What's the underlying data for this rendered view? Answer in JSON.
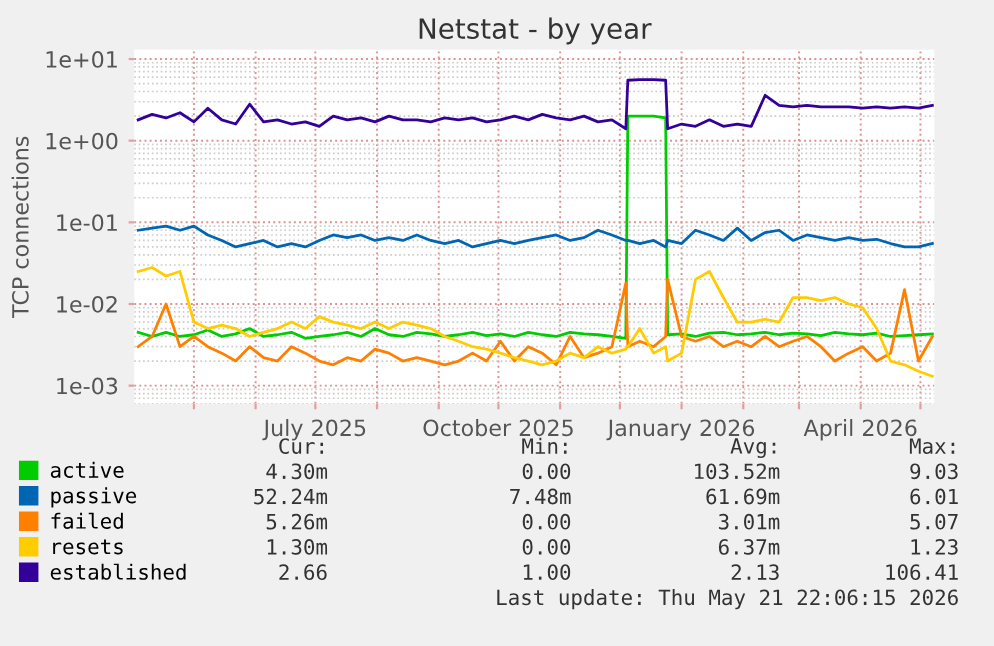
{
  "chart_data": {
    "type": "line",
    "title": "Netstat - by year",
    "ylabel": "TCP connections",
    "log": "y",
    "grid": true,
    "legend": "bottom left",
    "marker": "none",
    "line_style": "solid",
    "ylim": [
      0.0006,
      13
    ],
    "yticks": [
      {
        "value": 0.001,
        "label": "1e-03"
      },
      {
        "value": 0.01,
        "label": "1e-02"
      },
      {
        "value": 0.1,
        "label": "1e-01"
      },
      {
        "value": 1,
        "label": "1e+00"
      },
      {
        "value": 10,
        "label": "1e+01"
      }
    ],
    "xlim": [
      "2025-04-01",
      "2026-05-08"
    ],
    "xticks": [
      {
        "value": "2025-05-01",
        "label": null
      },
      {
        "value": "2025-06-01",
        "label": null
      },
      {
        "value": "2025-07-01",
        "label": "July 2025"
      },
      {
        "value": "2025-08-01",
        "label": null
      },
      {
        "value": "2025-09-01",
        "label": null
      },
      {
        "value": "2025-10-01",
        "label": "October 2025"
      },
      {
        "value": "2025-11-01",
        "label": null
      },
      {
        "value": "2025-12-01",
        "label": null
      },
      {
        "value": "2026-01-01",
        "label": "January 2026"
      },
      {
        "value": "2026-02-01",
        "label": null
      },
      {
        "value": "2026-03-01",
        "label": null
      },
      {
        "value": "2026-04-01",
        "label": "April 2026"
      },
      {
        "value": "2026-05-01",
        "label": null
      }
    ],
    "x": [
      "2025-04-03",
      "2025-04-10",
      "2025-04-17",
      "2025-04-24",
      "2025-05-01",
      "2025-05-08",
      "2025-05-15",
      "2025-05-22",
      "2025-05-29",
      "2025-06-05",
      "2025-06-12",
      "2025-06-19",
      "2025-06-26",
      "2025-07-03",
      "2025-07-10",
      "2025-07-17",
      "2025-07-24",
      "2025-07-31",
      "2025-08-07",
      "2025-08-14",
      "2025-08-21",
      "2025-08-28",
      "2025-09-04",
      "2025-09-11",
      "2025-09-18",
      "2025-09-25",
      "2025-10-02",
      "2025-10-09",
      "2025-10-16",
      "2025-10-23",
      "2025-10-30",
      "2025-11-06",
      "2025-11-13",
      "2025-11-20",
      "2025-11-27",
      "2025-12-04",
      "2025-12-05",
      "2025-12-11",
      "2025-12-18",
      "2025-12-24",
      "2025-12-25",
      "2026-01-01",
      "2026-01-08",
      "2026-01-15",
      "2026-01-22",
      "2026-01-29",
      "2026-02-05",
      "2026-02-12",
      "2026-02-19",
      "2026-02-26",
      "2026-03-05",
      "2026-03-12",
      "2026-03-19",
      "2026-03-26",
      "2026-04-02",
      "2026-04-09",
      "2026-04-16",
      "2026-04-23",
      "2026-04-30",
      "2026-05-07"
    ],
    "series": [
      {
        "name": "active",
        "color": "#00cc00",
        "values": [
          0.0045,
          0.004,
          0.0045,
          0.004,
          0.0042,
          0.0048,
          0.004,
          0.0043,
          0.005,
          0.004,
          0.0042,
          0.0045,
          0.0038,
          0.004,
          0.0042,
          0.0045,
          0.004,
          0.005,
          0.0042,
          0.004,
          0.0045,
          0.0043,
          0.004,
          0.0042,
          0.0045,
          0.0041,
          0.0043,
          0.004,
          0.0045,
          0.0042,
          0.004,
          0.0045,
          0.0043,
          0.0042,
          0.004,
          0.0038,
          2.0,
          2.0,
          2.0,
          1.9,
          0.0042,
          0.0043,
          0.004,
          0.0044,
          0.0045,
          0.0042,
          0.0043,
          0.0045,
          0.0042,
          0.0044,
          0.0043,
          0.0041,
          0.0045,
          0.0043,
          0.0042,
          0.0044,
          0.004,
          0.0041,
          0.0042,
          0.0043
        ]
      },
      {
        "name": "passive",
        "color": "#0066b3",
        "values": [
          0.08,
          0.085,
          0.09,
          0.08,
          0.09,
          0.07,
          0.06,
          0.05,
          0.055,
          0.06,
          0.05,
          0.055,
          0.05,
          0.06,
          0.07,
          0.065,
          0.07,
          0.06,
          0.065,
          0.06,
          0.07,
          0.06,
          0.055,
          0.06,
          0.05,
          0.055,
          0.06,
          0.055,
          0.06,
          0.065,
          0.07,
          0.06,
          0.065,
          0.08,
          0.07,
          0.06,
          0.06,
          0.055,
          0.06,
          0.05,
          0.06,
          0.055,
          0.08,
          0.07,
          0.06,
          0.085,
          0.06,
          0.075,
          0.08,
          0.06,
          0.07,
          0.065,
          0.06,
          0.065,
          0.06,
          0.062,
          0.055,
          0.05,
          0.05,
          0.055
        ]
      },
      {
        "name": "failed",
        "color": "#ff8000",
        "values": [
          0.003,
          0.004,
          0.01,
          0.003,
          0.004,
          0.003,
          0.0025,
          0.002,
          0.003,
          0.0022,
          0.002,
          0.003,
          0.0025,
          0.002,
          0.0018,
          0.0022,
          0.002,
          0.0028,
          0.0025,
          0.002,
          0.0022,
          0.002,
          0.0018,
          0.002,
          0.0025,
          0.002,
          0.0035,
          0.002,
          0.003,
          0.0025,
          0.0018,
          0.004,
          0.0022,
          0.0025,
          0.003,
          0.018,
          0.003,
          0.0035,
          0.003,
          0.004,
          0.02,
          0.004,
          0.0035,
          0.004,
          0.003,
          0.0035,
          0.003,
          0.004,
          0.003,
          0.0035,
          0.004,
          0.003,
          0.002,
          0.0025,
          0.003,
          0.002,
          0.0025,
          0.015,
          0.002,
          0.004
        ]
      },
      {
        "name": "resets",
        "color": "#ffcc00",
        "values": [
          0.025,
          0.028,
          0.022,
          0.025,
          0.006,
          0.005,
          0.0055,
          0.005,
          0.004,
          0.0045,
          0.005,
          0.006,
          0.005,
          0.007,
          0.006,
          0.0055,
          0.005,
          0.006,
          0.005,
          0.006,
          0.0055,
          0.005,
          0.004,
          0.0035,
          0.003,
          0.0028,
          0.0025,
          0.0022,
          0.002,
          0.0018,
          0.002,
          0.0025,
          0.0022,
          0.003,
          0.0025,
          0.0028,
          0.003,
          0.005,
          0.0025,
          0.003,
          0.002,
          0.0025,
          0.02,
          0.025,
          0.012,
          0.006,
          0.006,
          0.0065,
          0.006,
          0.012,
          0.012,
          0.011,
          0.012,
          0.01,
          0.009,
          0.005,
          0.002,
          0.0018,
          0.0015,
          0.0013
        ]
      },
      {
        "name": "established",
        "color": "#330099",
        "values": [
          1.8,
          2.1,
          1.9,
          2.2,
          1.7,
          2.5,
          1.8,
          1.6,
          2.8,
          1.7,
          1.8,
          1.6,
          1.7,
          1.5,
          2.0,
          1.8,
          1.9,
          1.7,
          2.0,
          1.8,
          1.8,
          1.7,
          1.9,
          1.8,
          1.9,
          1.7,
          1.8,
          2.0,
          1.8,
          2.1,
          1.9,
          1.8,
          2.0,
          1.7,
          1.8,
          1.4,
          5.5,
          5.6,
          5.6,
          5.5,
          1.4,
          1.6,
          1.5,
          1.8,
          1.5,
          1.6,
          1.5,
          3.6,
          2.7,
          2.6,
          2.7,
          2.6,
          2.6,
          2.6,
          2.5,
          2.6,
          2.5,
          2.6,
          2.5,
          2.7
        ]
      }
    ],
    "annotations": [
      "Cur:",
      "Min:",
      "Avg:",
      "Max:",
      "4.30m",
      "0.00",
      "103.52m",
      "9.03",
      "52.24m",
      "7.48m",
      "61.69m",
      "6.01",
      "5.26m",
      "0.00",
      "3.01m",
      "5.07",
      "1.30m",
      "0.00",
      "6.37m",
      "1.23",
      "2.66",
      "1.00",
      "2.13",
      "106.41",
      "Last update: Thu May 21 22:06:15 2026"
    ]
  }
}
